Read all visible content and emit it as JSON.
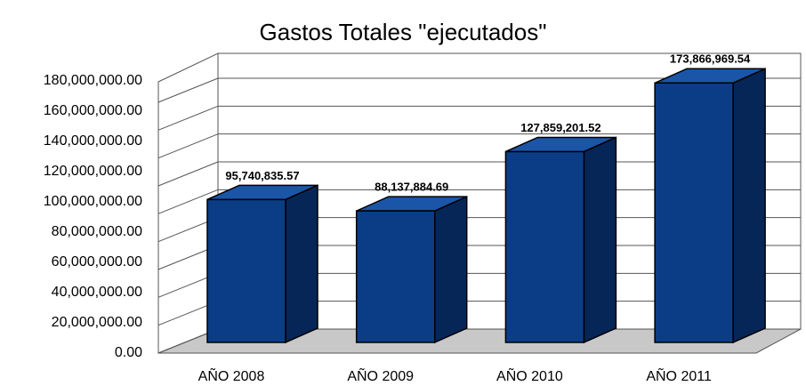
{
  "chart_data": {
    "type": "bar3d",
    "title": "Gastos Totales \"ejecutados\"",
    "categories": [
      "AÑO 2008",
      "AÑO 2009",
      "AÑO 2010",
      "AÑO 2011"
    ],
    "values": [
      95740835.57,
      88137884.69,
      127859201.52,
      173866969.54
    ],
    "value_labels": [
      "95,740,835.57",
      "88,137,884.69",
      "127,859,201.52",
      "173,866,969.54"
    ],
    "color": "#0b3d87",
    "ylim": [
      0,
      180000000
    ],
    "yticks": [
      {
        "value": 0,
        "label": "0.00"
      },
      {
        "value": 20000000,
        "label": "20,000,000.00"
      },
      {
        "value": 40000000,
        "label": "40,000,000.00"
      },
      {
        "value": 60000000,
        "label": "60,000,000.00"
      },
      {
        "value": 80000000,
        "label": "80,000,000.00"
      },
      {
        "value": 100000000,
        "label": "100,000,000.00"
      },
      {
        "value": 120000000,
        "label": "120,000,000.00"
      },
      {
        "value": 140000000,
        "label": "140,000,000.00"
      },
      {
        "value": 160000000,
        "label": "160,000,000.00"
      },
      {
        "value": 180000000,
        "label": "180,000,000.00"
      }
    ],
    "grid": true
  }
}
